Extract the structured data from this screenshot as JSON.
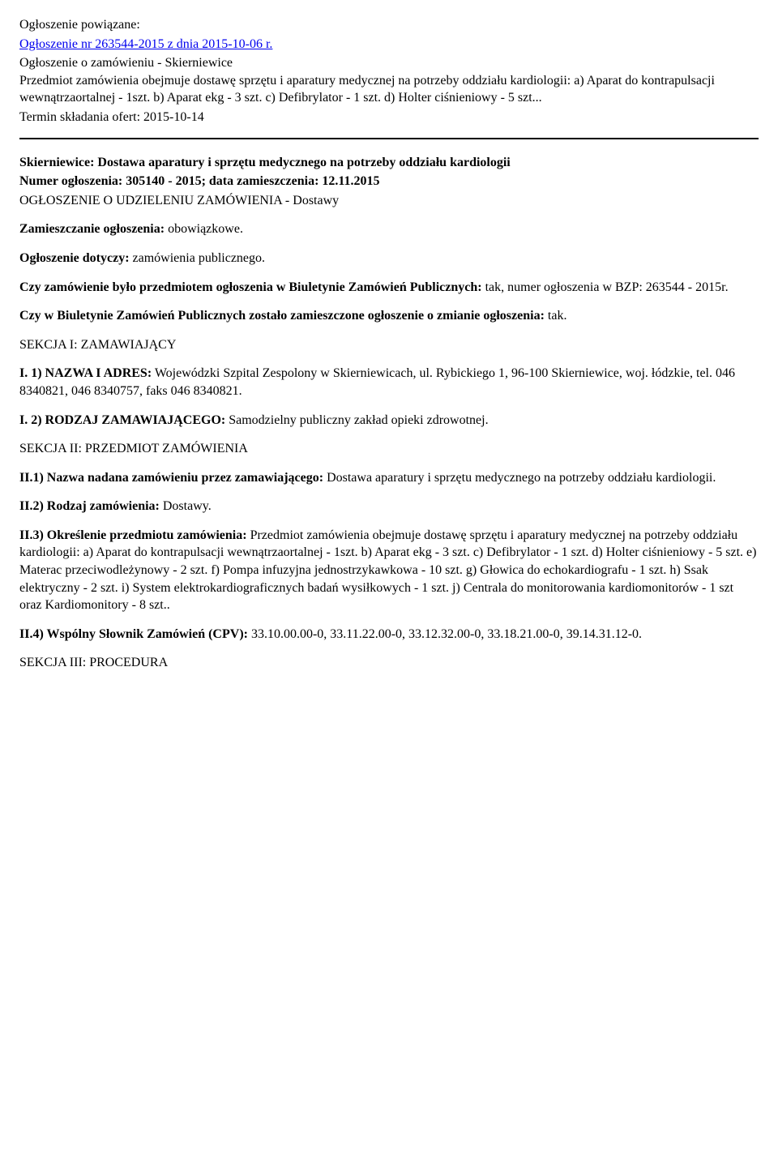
{
  "header": {
    "linked_label": "Ogłoszenie powiązane:",
    "link_text": "Ogłoszenie nr 263544-2015 z dnia 2015-10-06 r.",
    "description": "Ogłoszenie o zamówieniu - Skierniewice\nPrzedmiot zamówienia obejmuje dostawę sprzętu i aparatury medycznej na potrzeby oddziału kardiologii: a) Aparat do kontrapulsacji wewnątrzaortalnej - 1szt. b) Aparat ekg - 3 szt. c) Defibrylator - 1 szt. d) Holter ciśnieniowy - 5 szt...",
    "deadline": "Termin składania ofert: 2015-10-14"
  },
  "title": {
    "line1": "Skierniewice: Dostawa aparatury i sprzętu medycznego na potrzeby oddziału kardiologii",
    "line2": "Numer ogłoszenia: 305140 - 2015; data zamieszczenia: 12.11.2015",
    "line3": "OGŁOSZENIE O UDZIELENIU ZAMÓWIENIA - Dostawy"
  },
  "fields": {
    "zamieszczanie_label": "Zamieszczanie ogłoszenia:",
    "zamieszczanie_value": " obowiązkowe.",
    "dotyczy_label": "Ogłoszenie dotyczy:",
    "dotyczy_value": " zamówienia publicznego.",
    "bzp_label": "Czy zamówienie było przedmiotem ogłoszenia w Biuletynie Zamówień Publicznych:",
    "bzp_value": " tak, numer ogłoszenia w BZP: 263544 - 2015r.",
    "zmiana_label": "Czy w Biuletynie Zamówień Publicznych zostało zamieszczone ogłoszenie o zmianie ogłoszenia:",
    "zmiana_value": " tak."
  },
  "sekcja1": {
    "heading": "SEKCJA I: ZAMAWIAJĄCY",
    "i1_label": "I. 1) NAZWA I ADRES:",
    "i1_value": " Wojewódzki Szpital Zespolony w Skierniewicach, ul. Rybickiego 1, 96-100 Skierniewice, woj. łódzkie, tel. 046 8340821, 046 8340757, faks 046 8340821.",
    "i2_label": "I. 2) RODZAJ ZAMAWIAJĄCEGO:",
    "i2_value": " Samodzielny publiczny zakład opieki zdrowotnej."
  },
  "sekcja2": {
    "heading": "SEKCJA II: PRZEDMIOT ZAMÓWIENIA",
    "ii1_label": "II.1) Nazwa nadana zamówieniu przez zamawiającego:",
    "ii1_value": " Dostawa aparatury i sprzętu medycznego na potrzeby oddziału kardiologii.",
    "ii2_label": "II.2) Rodzaj zamówienia:",
    "ii2_value": " Dostawy.",
    "ii3_label": "II.3) Określenie przedmiotu zamówienia:",
    "ii3_value": " Przedmiot zamówienia obejmuje dostawę sprzętu i aparatury medycznej na potrzeby oddziału kardiologii: a) Aparat do kontrapulsacji wewnątrzaortalnej - 1szt. b) Aparat ekg - 3 szt. c) Defibrylator - 1 szt. d) Holter ciśnieniowy - 5 szt. e) Materac przeciwodleżynowy - 2 szt. f) Pompa infuzyjna jednostrzykawkowa - 10 szt. g) Głowica do echokardiografu - 1 szt. h) Ssak elektryczny - 2 szt. i) System elektrokardiograficznych badań wysiłkowych - 1 szt. j) Centrala do monitorowania kardiomonitorów - 1 szt oraz Kardiomonitory - 8 szt..",
    "ii4_label": "II.4) Wspólny Słownik Zamówień (CPV):",
    "ii4_value": " 33.10.00.00-0, 33.11.22.00-0, 33.12.32.00-0, 33.18.21.00-0, 39.14.31.12-0."
  },
  "sekcja3": {
    "heading": "SEKCJA III: PROCEDURA"
  }
}
